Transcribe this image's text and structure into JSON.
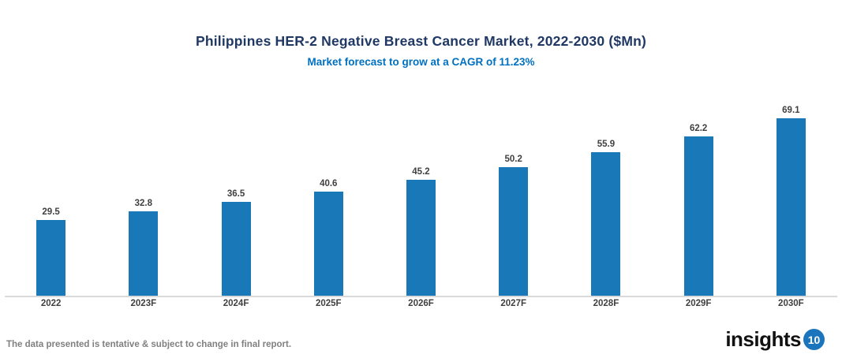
{
  "title": "Philippines HER-2 Negative Breast Cancer Market, 2022-2030 ($Mn)",
  "subtitle": "Market forecast to grow at a CAGR of 11.23%",
  "footer_note": "The data presented is tentative & subject to change in final report.",
  "logo": {
    "text": "insights",
    "badge": "10"
  },
  "colors": {
    "bar": "#1878b8",
    "title": "#1f3864",
    "subtitle": "#0070c0",
    "data_label": "#404040",
    "axis_label": "#404040",
    "footer": "#808080",
    "axis_line": "#d9d9d9",
    "logo_badge": "#1b75bc"
  },
  "chart_data": {
    "type": "bar",
    "categories": [
      "2022",
      "2023F",
      "2024F",
      "2025F",
      "2026F",
      "2027F",
      "2028F",
      "2029F",
      "2030F"
    ],
    "values": [
      29.5,
      32.8,
      36.5,
      40.6,
      45.2,
      50.2,
      55.9,
      62.2,
      69.1
    ],
    "title": "Philippines HER-2 Negative Breast Cancer Market, 2022-2030 ($Mn)",
    "subtitle": "Market forecast to grow at a CAGR of 11.23%",
    "xlabel": "",
    "ylabel": "",
    "ylim": [
      0,
      75
    ],
    "grid": false,
    "legend": false,
    "data_labels": true,
    "bar_color": "#1878b8"
  }
}
